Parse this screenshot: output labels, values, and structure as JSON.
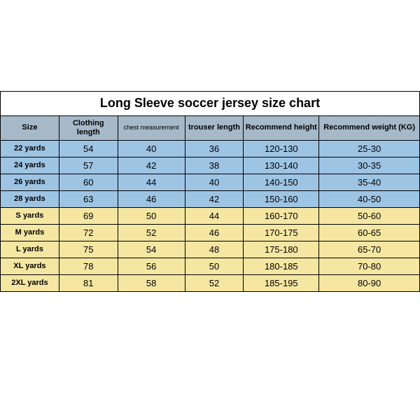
{
  "title": "Long Sleeve soccer jersey size chart",
  "header_bg": "#a6b9c9",
  "columns": [
    {
      "label": "Size",
      "width": "14%"
    },
    {
      "label": "Clothing length",
      "width": "14%"
    },
    {
      "label": "chest measurement",
      "width": "16%",
      "small": true
    },
    {
      "label": "trouser length",
      "width": "14%"
    },
    {
      "label": "Recommend height",
      "width": "18%"
    },
    {
      "label": "Recommend weight (KG)",
      "width": "24%"
    }
  ],
  "row_colors": {
    "kids": "#9ec4e4",
    "adult": "#f5e6a2"
  },
  "rows": [
    {
      "group": "kids",
      "cells": [
        "22 yards",
        "54",
        "40",
        "36",
        "120-130",
        "25-30"
      ]
    },
    {
      "group": "kids",
      "cells": [
        "24 yards",
        "57",
        "42",
        "38",
        "130-140",
        "30-35"
      ]
    },
    {
      "group": "kids",
      "cells": [
        "26 yards",
        "60",
        "44",
        "40",
        "140-150",
        "35-40"
      ]
    },
    {
      "group": "kids",
      "cells": [
        "28 yards",
        "63",
        "46",
        "42",
        "150-160",
        "40-50"
      ]
    },
    {
      "group": "adult",
      "cells": [
        "S yards",
        "69",
        "50",
        "44",
        "160-170",
        "50-60"
      ]
    },
    {
      "group": "adult",
      "cells": [
        "M yards",
        "72",
        "52",
        "46",
        "170-175",
        "60-65"
      ]
    },
    {
      "group": "adult",
      "cells": [
        "L yards",
        "75",
        "54",
        "48",
        "175-180",
        "65-70"
      ]
    },
    {
      "group": "adult",
      "cells": [
        "XL yards",
        "78",
        "56",
        "50",
        "180-185",
        "70-80"
      ]
    },
    {
      "group": "adult",
      "cells": [
        "2XL yards",
        "81",
        "58",
        "52",
        "185-195",
        "80-90"
      ]
    }
  ]
}
